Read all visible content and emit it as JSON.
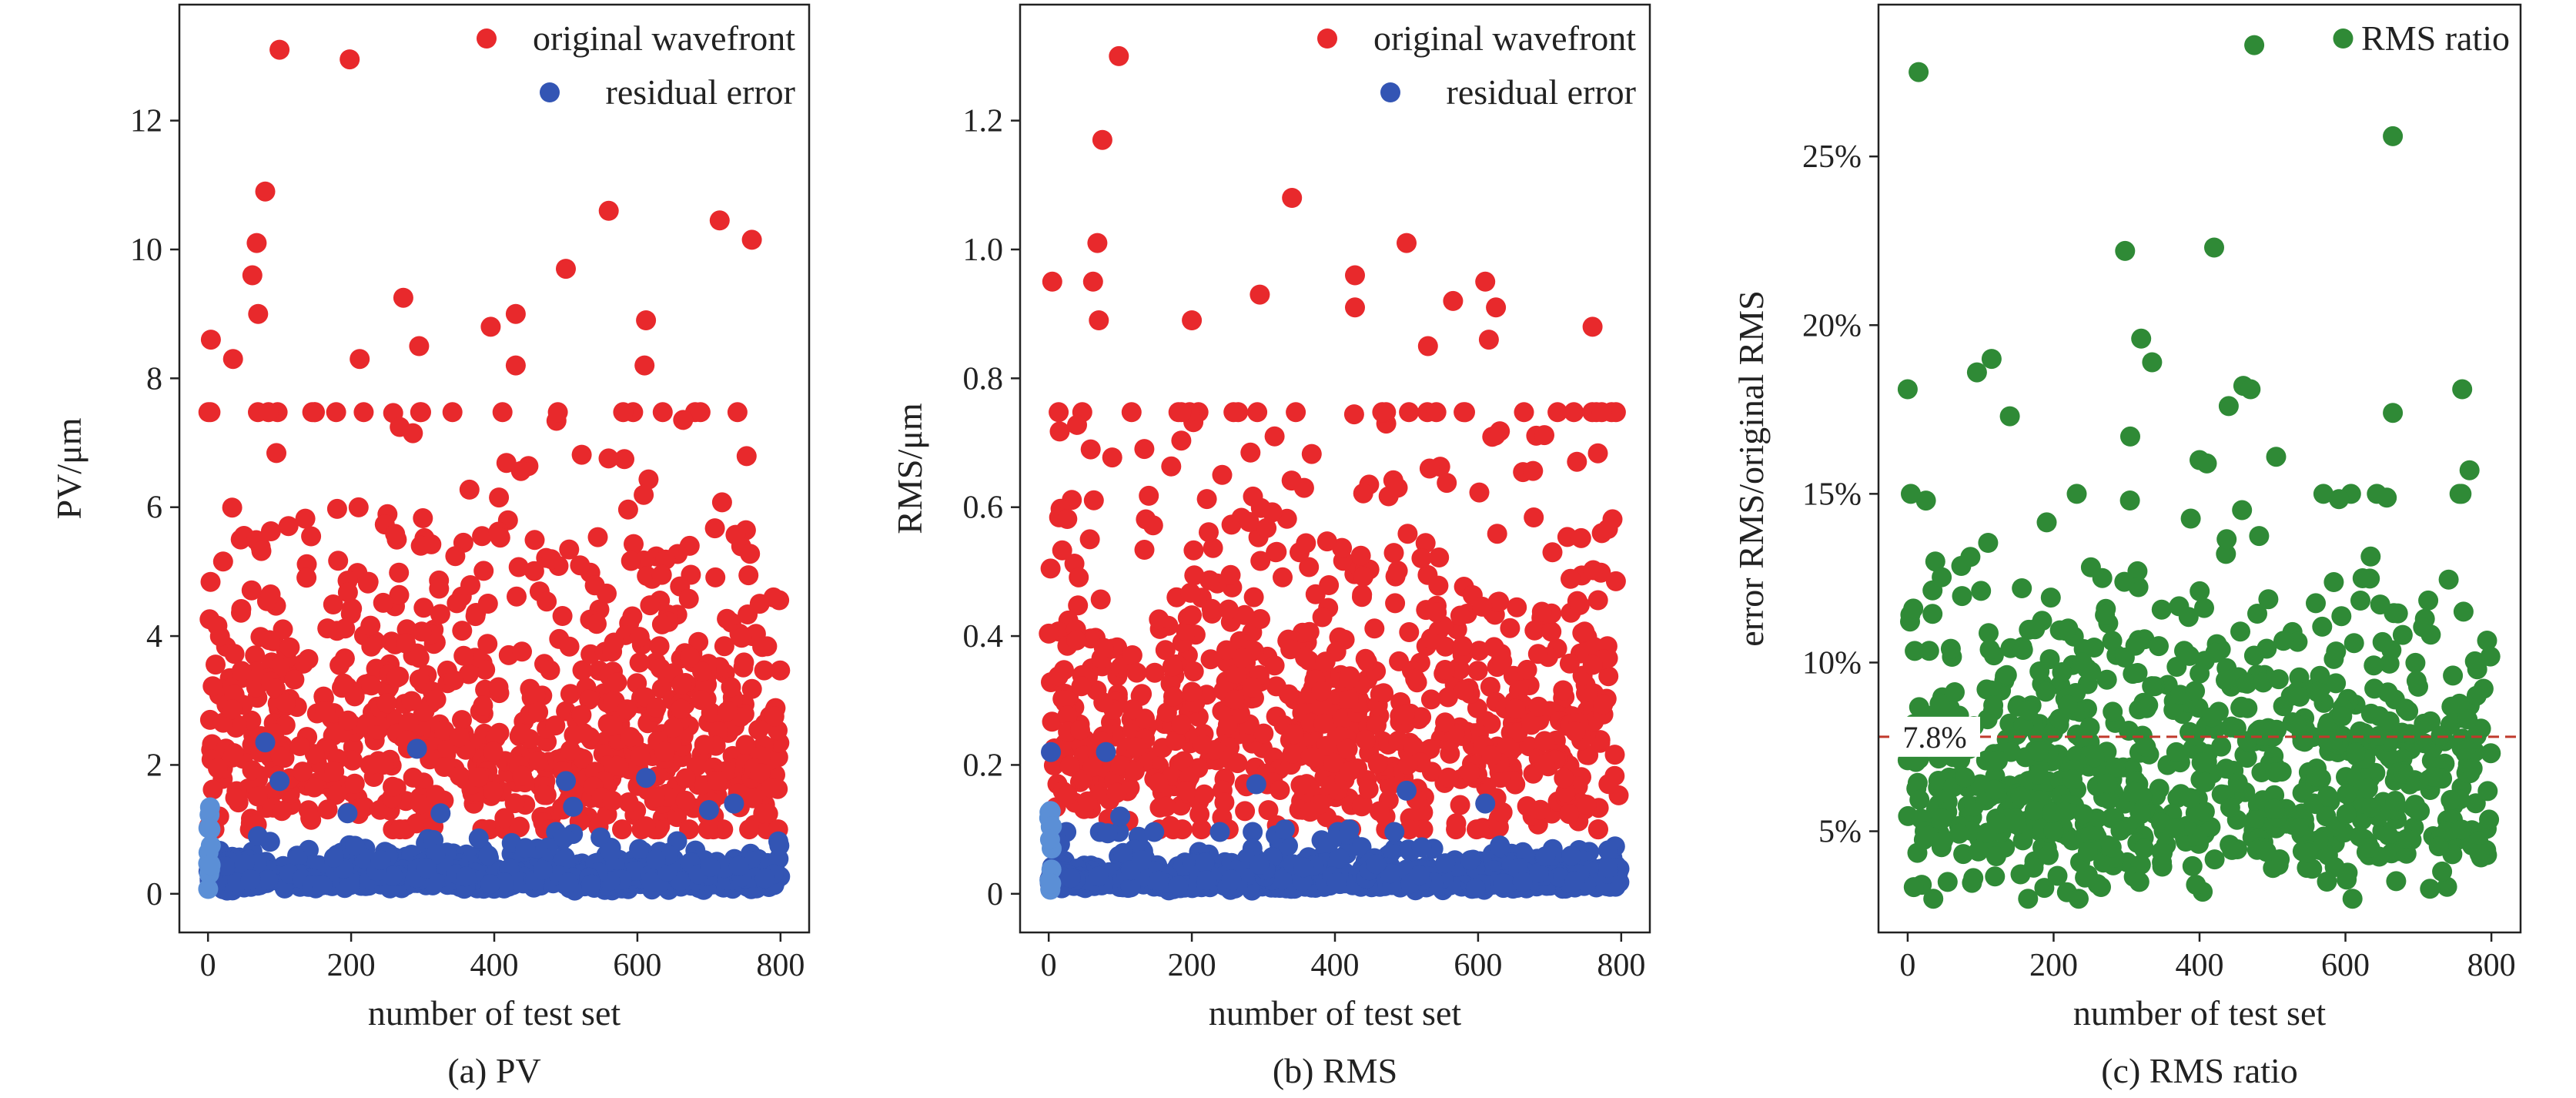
{
  "colors": {
    "original": "#e8292c",
    "residual": "#3355b4",
    "residual_light": "#5b8fd6",
    "ratio": "#2f8a36",
    "threshold": "#c0392b"
  },
  "chart_data": [
    {
      "type": "scatter",
      "caption": "(a) PV",
      "xlabel": "number of test set",
      "ylabel": "PV/μm",
      "xlim": [
        -40,
        840
      ],
      "ylim": [
        -0.6,
        13.8
      ],
      "xticks": [
        0,
        200,
        400,
        600,
        800
      ],
      "xtick_labels": [
        "0",
        "200",
        "400",
        "600",
        "800"
      ],
      "yticks": [
        0,
        2,
        4,
        6,
        8,
        10,
        12
      ],
      "ytick_labels": [
        "0",
        "2",
        "4",
        "6",
        "8",
        "10",
        "12"
      ],
      "legend": [
        "original wavefront",
        "residual error"
      ],
      "legend_position": "top-right",
      "n_points": 800,
      "series": [
        {
          "name": "original wavefront",
          "typical_range": [
            1.0,
            6.5
          ],
          "median": 2.6,
          "outliers": [
            {
              "x": 100,
              "y": 13.1
            },
            {
              "x": 198,
              "y": 12.95
            },
            {
              "x": 80,
              "y": 10.9
            },
            {
              "x": 560,
              "y": 10.6
            },
            {
              "x": 715,
              "y": 10.45
            },
            {
              "x": 760,
              "y": 10.15
            },
            {
              "x": 68,
              "y": 10.1
            },
            {
              "x": 500,
              "y": 9.7
            },
            {
              "x": 62,
              "y": 9.6
            },
            {
              "x": 273,
              "y": 9.25
            },
            {
              "x": 70,
              "y": 9.0
            },
            {
              "x": 430,
              "y": 9.0
            },
            {
              "x": 395,
              "y": 8.8
            },
            {
              "x": 612,
              "y": 8.9
            },
            {
              "x": 4,
              "y": 8.6
            },
            {
              "x": 295,
              "y": 8.5
            },
            {
              "x": 35,
              "y": 8.3
            },
            {
              "x": 212,
              "y": 8.3
            },
            {
              "x": 610,
              "y": 8.2
            },
            {
              "x": 430,
              "y": 8.2
            }
          ]
        },
        {
          "name": "residual error",
          "typical_range": [
            0.05,
            0.6
          ],
          "median": 0.25,
          "outliers": [
            {
              "x": 80,
              "y": 2.35
            },
            {
              "x": 292,
              "y": 2.25
            },
            {
              "x": 612,
              "y": 1.8
            },
            {
              "x": 100,
              "y": 1.75
            },
            {
              "x": 500,
              "y": 1.75
            },
            {
              "x": 510,
              "y": 1.35
            },
            {
              "x": 735,
              "y": 1.4
            },
            {
              "x": 195,
              "y": 1.25
            },
            {
              "x": 325,
              "y": 1.25
            },
            {
              "x": 700,
              "y": 1.3
            }
          ]
        }
      ]
    },
    {
      "type": "scatter",
      "caption": "(b) RMS",
      "xlabel": "number of test set",
      "ylabel": "RMS/μm",
      "xlim": [
        -40,
        840
      ],
      "ylim": [
        -0.06,
        1.38
      ],
      "xticks": [
        0,
        200,
        400,
        600,
        800
      ],
      "xtick_labels": [
        "0",
        "200",
        "400",
        "600",
        "800"
      ],
      "yticks": [
        0,
        0.2,
        0.4,
        0.6,
        0.8,
        1.0,
        1.2
      ],
      "ytick_labels": [
        "0",
        "0.2",
        "0.4",
        "0.6",
        "0.8",
        "1.0",
        "1.2"
      ],
      "legend": [
        "original wavefront",
        "residual error"
      ],
      "legend_position": "top-right",
      "n_points": 800,
      "series": [
        {
          "name": "original wavefront",
          "typical_range": [
            0.1,
            0.65
          ],
          "median": 0.28,
          "outliers": [
            {
              "x": 98,
              "y": 1.3
            },
            {
              "x": 75,
              "y": 1.17
            },
            {
              "x": 340,
              "y": 1.08
            },
            {
              "x": 500,
              "y": 1.01
            },
            {
              "x": 68,
              "y": 1.01
            },
            {
              "x": 5,
              "y": 0.95
            },
            {
              "x": 610,
              "y": 0.95
            },
            {
              "x": 428,
              "y": 0.96
            },
            {
              "x": 62,
              "y": 0.95
            },
            {
              "x": 295,
              "y": 0.93
            },
            {
              "x": 565,
              "y": 0.92
            },
            {
              "x": 625,
              "y": 0.91
            },
            {
              "x": 428,
              "y": 0.91
            },
            {
              "x": 70,
              "y": 0.89
            },
            {
              "x": 200,
              "y": 0.89
            },
            {
              "x": 760,
              "y": 0.88
            },
            {
              "x": 530,
              "y": 0.85
            },
            {
              "x": 615,
              "y": 0.86
            }
          ]
        },
        {
          "name": "residual error",
          "typical_range": [
            0.005,
            0.06
          ],
          "median": 0.025,
          "outliers": [
            {
              "x": 80,
              "y": 0.22
            },
            {
              "x": 3,
              "y": 0.22
            },
            {
              "x": 290,
              "y": 0.17
            },
            {
              "x": 500,
              "y": 0.16
            },
            {
              "x": 610,
              "y": 0.14
            },
            {
              "x": 100,
              "y": 0.12
            },
            {
              "x": 420,
              "y": 0.1
            },
            {
              "x": 330,
              "y": 0.1
            }
          ]
        }
      ]
    },
    {
      "type": "scatter",
      "caption": "(c) RMS ratio",
      "xlabel": "number of test set",
      "ylabel": "error RMS/original RMS",
      "xlim": [
        -40,
        840
      ],
      "ylim": [
        2.0,
        29.5
      ],
      "xticks": [
        0,
        200,
        400,
        600,
        800
      ],
      "xtick_labels": [
        "0",
        "200",
        "400",
        "600",
        "800"
      ],
      "yticks": [
        5,
        10,
        15,
        20,
        25
      ],
      "ytick_labels": [
        "5%",
        "10%",
        "15%",
        "20%",
        "25%"
      ],
      "legend": [
        "RMS ratio"
      ],
      "legend_position": "top-right",
      "reference_line": {
        "y": 7.8,
        "label": "7.8%",
        "style": "dashed"
      },
      "n_points": 800,
      "series": [
        {
          "name": "RMS ratio",
          "typical_range": [
            3.0,
            15.0
          ],
          "median": 7.0,
          "outliers": [
            {
              "x": 15,
              "y": 27.5
            },
            {
              "x": 475,
              "y": 28.3
            },
            {
              "x": 665,
              "y": 25.6
            },
            {
              "x": 420,
              "y": 22.3
            },
            {
              "x": 298,
              "y": 22.2
            },
            {
              "x": 0,
              "y": 18.1
            },
            {
              "x": 320,
              "y": 19.6
            },
            {
              "x": 335,
              "y": 18.9
            },
            {
              "x": 95,
              "y": 18.6
            },
            {
              "x": 115,
              "y": 19.0
            },
            {
              "x": 760,
              "y": 18.1
            },
            {
              "x": 460,
              "y": 18.2
            },
            {
              "x": 470,
              "y": 18.1
            },
            {
              "x": 440,
              "y": 17.6
            },
            {
              "x": 665,
              "y": 17.4
            },
            {
              "x": 140,
              "y": 17.3
            },
            {
              "x": 305,
              "y": 16.7
            },
            {
              "x": 505,
              "y": 16.1
            },
            {
              "x": 400,
              "y": 16.0
            },
            {
              "x": 410,
              "y": 15.9
            },
            {
              "x": 770,
              "y": 15.7
            },
            {
              "x": 25,
              "y": 14.8
            }
          ]
        }
      ]
    }
  ]
}
